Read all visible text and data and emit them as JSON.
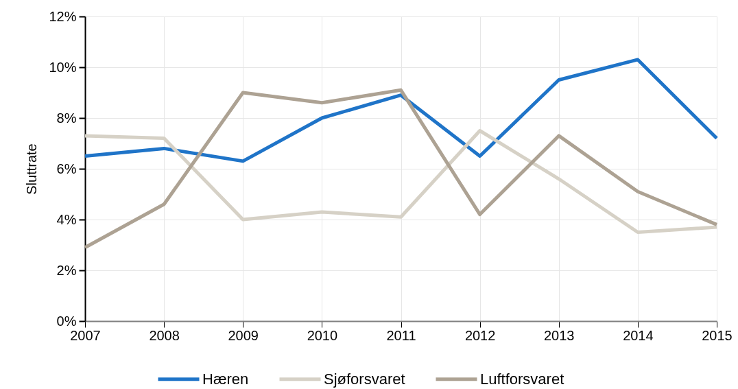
{
  "chart_data": {
    "type": "line",
    "ylabel": "Sluttrate",
    "x": [
      2007,
      2008,
      2009,
      2010,
      2011,
      2012,
      2013,
      2014,
      2015
    ],
    "series": [
      {
        "name": "Hæren",
        "color": "#1f74c8",
        "values": [
          6.5,
          6.8,
          6.3,
          8.0,
          8.9,
          6.5,
          9.5,
          10.3,
          7.2
        ]
      },
      {
        "name": "Sjøforsvaret",
        "color": "#d6d1c6",
        "values": [
          7.3,
          7.2,
          4.0,
          4.3,
          4.1,
          7.5,
          5.6,
          3.5,
          3.7
        ]
      },
      {
        "name": "Luftforsvaret",
        "color": "#ada293",
        "values": [
          2.9,
          4.6,
          9.0,
          8.6,
          9.1,
          4.2,
          7.3,
          5.1,
          3.8
        ]
      }
    ],
    "xlim": [
      2007,
      2015
    ],
    "xticks": [
      2007,
      2008,
      2009,
      2010,
      2011,
      2012,
      2013,
      2014,
      2015
    ],
    "ylim": [
      0,
      12
    ],
    "yticks": [
      {
        "value": 0,
        "label": "0%"
      },
      {
        "value": 2,
        "label": "2%"
      },
      {
        "value": 4,
        "label": "4%"
      },
      {
        "value": 6,
        "label": "6%"
      },
      {
        "value": 8,
        "label": "8%"
      },
      {
        "value": 10,
        "label": "10%"
      },
      {
        "value": 12,
        "label": "12%"
      }
    ],
    "grid": true,
    "legend": "bottom",
    "line_style": "solid"
  }
}
